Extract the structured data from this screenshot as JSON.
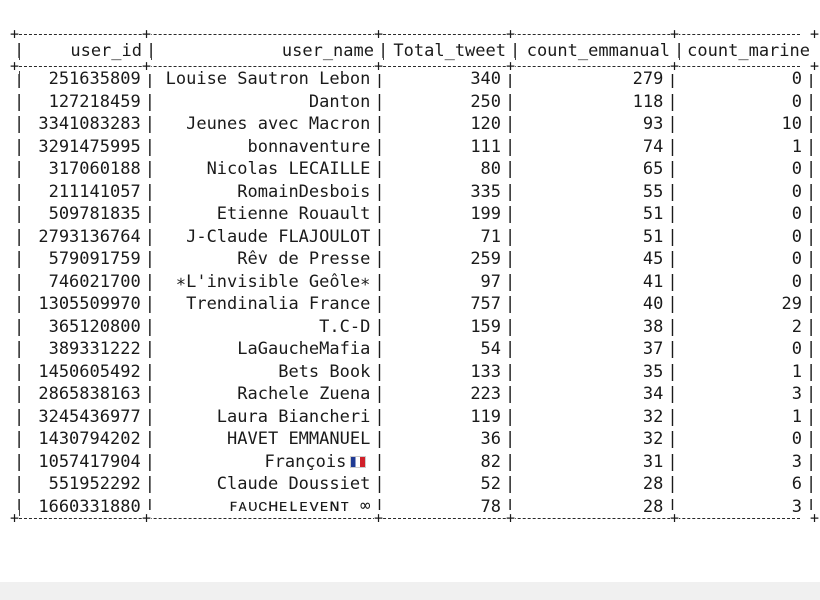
{
  "table": {
    "columns": [
      "user_id",
      "user_name",
      "Total_tweet",
      "count_emmanual",
      "count_marine"
    ],
    "rows": [
      {
        "user_id": "251635809",
        "user_name": "Louise Sautron Lebon",
        "total": "340",
        "emm": "279",
        "mar": "0"
      },
      {
        "user_id": "127218459",
        "user_name": "Danton",
        "total": "250",
        "emm": "118",
        "mar": "0"
      },
      {
        "user_id": "3341083283",
        "user_name": "Jeunes avec Macron",
        "total": "120",
        "emm": "93",
        "mar": "10"
      },
      {
        "user_id": "3291475995",
        "user_name": "bonnaventure",
        "total": "111",
        "emm": "74",
        "mar": "1"
      },
      {
        "user_id": "317060188",
        "user_name": "Nicolas LECAILLE",
        "total": "80",
        "emm": "65",
        "mar": "0"
      },
      {
        "user_id": "211141057",
        "user_name": "RomainDesbois",
        "total": "335",
        "emm": "55",
        "mar": "0"
      },
      {
        "user_id": "509781835",
        "user_name": "Etienne Rouault",
        "total": "199",
        "emm": "51",
        "mar": "0"
      },
      {
        "user_id": "2793136764",
        "user_name": "J-Claude FLAJOULOT",
        "total": "71",
        "emm": "51",
        "mar": "0"
      },
      {
        "user_id": "579091759",
        "user_name": "Rêv de Presse",
        "total": "259",
        "emm": "45",
        "mar": "0"
      },
      {
        "user_id": "746021700",
        "user_name": "∗L'invisible Geôle∗",
        "total": "97",
        "emm": "41",
        "mar": "0"
      },
      {
        "user_id": "1305509970",
        "user_name": "Trendinalia France",
        "total": "757",
        "emm": "40",
        "mar": "29"
      },
      {
        "user_id": "365120800",
        "user_name": "T.C-D",
        "total": "159",
        "emm": "38",
        "mar": "2"
      },
      {
        "user_id": "389331222",
        "user_name": "LaGaucheMafia",
        "total": "54",
        "emm": "37",
        "mar": "0"
      },
      {
        "user_id": "1450605492",
        "user_name": "Bets Book",
        "total": "133",
        "emm": "35",
        "mar": "1"
      },
      {
        "user_id": "2865838163",
        "user_name": "Rachele Zuena",
        "total": "223",
        "emm": "34",
        "mar": "3"
      },
      {
        "user_id": "3245436977",
        "user_name": "Laura Biancheri",
        "total": "119",
        "emm": "32",
        "mar": "1"
      },
      {
        "user_id": "1430794202",
        "user_name": "HAVET EMMANUEL",
        "total": "36",
        "emm": "32",
        "mar": "0"
      },
      {
        "user_id": "1057417904",
        "user_name": "François",
        "total": "82",
        "emm": "31",
        "mar": "3",
        "flag": "fr-flag-icon"
      },
      {
        "user_id": "551952292",
        "user_name": "Claude Doussiet",
        "total": "52",
        "emm": "28",
        "mar": "6"
      },
      {
        "user_id": "1660331880",
        "user_name": "ꜰᴀᴜᴄʜᴇʟᴇᴠᴇɴᴛ ∞",
        "total": "78",
        "emm": "28",
        "mar": "3"
      }
    ]
  }
}
